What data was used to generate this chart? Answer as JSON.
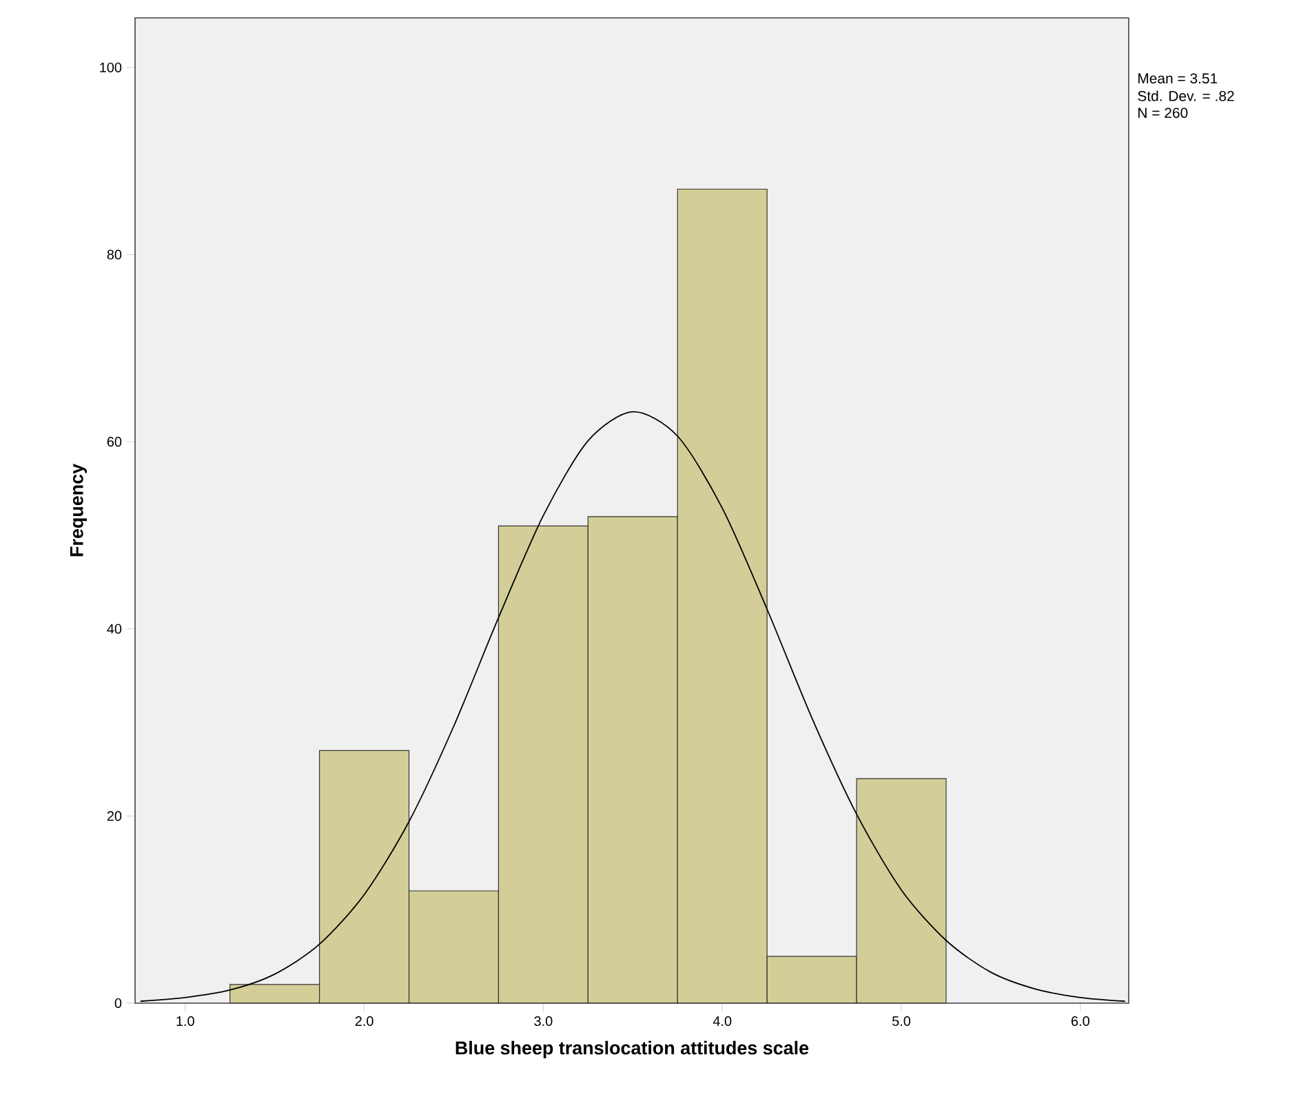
{
  "chart_data": {
    "type": "histogram",
    "xlabel": "Blue sheep translocation attitudes scale",
    "ylabel": "Frequency",
    "bins": [
      1.25,
      1.75,
      2.25,
      2.75,
      3.25,
      3.75,
      4.25,
      4.75,
      5.25
    ],
    "values": [
      2,
      27,
      12,
      51,
      52,
      87,
      5,
      24
    ],
    "color": "#d3ce97",
    "series": [
      {
        "type": "line",
        "color": "#000000",
        "x": [
          0.75,
          1.0,
          1.25,
          1.5,
          1.75,
          2.0,
          2.25,
          2.5,
          2.75,
          3.0,
          3.25,
          3.5,
          3.75,
          4.0,
          4.25,
          4.5,
          4.75,
          5.0,
          5.25,
          5.5,
          5.75,
          6.0,
          6.25
        ],
        "values": [
          0.2,
          0.6,
          1.4,
          3.1,
          6.3,
          11.6,
          19.4,
          29.6,
          41.2,
          52.1,
          60.1,
          63.2,
          60.6,
          52.9,
          42.1,
          30.5,
          20.2,
          12.1,
          6.7,
          3.3,
          1.5,
          0.6,
          0.2
        ]
      }
    ],
    "xlim": [
      0.72,
      6.27
    ],
    "ylim": [
      0,
      105.3
    ],
    "xticks": [
      {
        "value": 1,
        "label": "1.0"
      },
      {
        "value": 2,
        "label": "2.0"
      },
      {
        "value": 3,
        "label": "3.0"
      },
      {
        "value": 4,
        "label": "4.0"
      },
      {
        "value": 5,
        "label": "5.0"
      },
      {
        "value": 6,
        "label": "6.0"
      }
    ],
    "yticks": [
      0,
      20,
      40,
      60,
      80,
      100
    ],
    "grid": false,
    "marker": "none",
    "line_style": "solid",
    "annotations": [
      "Mean = 3.51",
      "Std. Dev. = .82",
      "N = 260"
    ]
  }
}
